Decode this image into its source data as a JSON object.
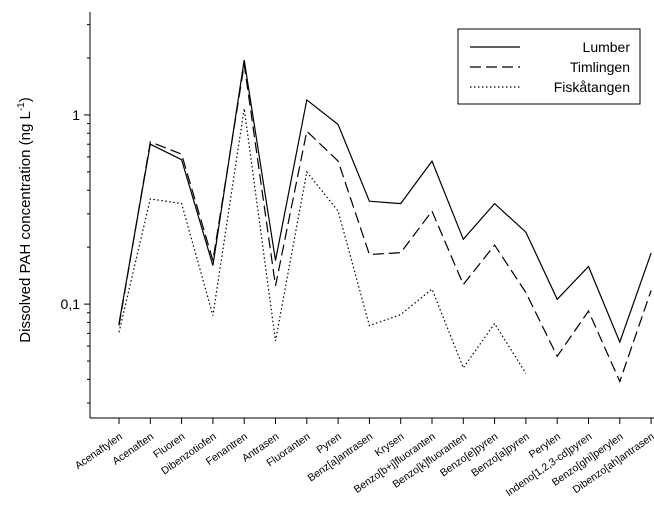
{
  "chart_data": {
    "type": "line",
    "ylabel": "Dissolved PAH concentration (ng L",
    "ylabel_sup": "-1",
    "ylabel_close": ")",
    "yscale": "log",
    "ylim": [
      0.025,
      3.5
    ],
    "yticks": [
      {
        "value": 0.1,
        "label": "0,1"
      },
      {
        "value": 1,
        "label": "1"
      }
    ],
    "grid": false,
    "legend_position": "top-right",
    "categories": [
      "Acenaftylen",
      "Acenaften",
      "Fluoren",
      "Dibenzotiofen",
      "Fenantren",
      "Antrasen",
      "Fluoranten",
      "Pyren",
      "Benz[a]antrasen",
      "Krysen",
      "Benzo[b+j]fluoranten",
      "Benzo[k]fluoranten",
      "Benzo[e]pyren",
      "Benzo[a]pyren",
      "Perylen",
      "Indeno[1,2,3-cd]pyren",
      "Benzo[ghi]perylen",
      "Dibenzo[ah]antrasen"
    ],
    "series": [
      {
        "name": "Lumber",
        "dash": "solid",
        "values": [
          0.079,
          0.7,
          0.58,
          0.16,
          1.95,
          0.17,
          1.2,
          0.89,
          0.35,
          0.34,
          0.57,
          0.22,
          0.34,
          0.24,
          0.106,
          0.158,
          0.063,
          0.186
        ]
      },
      {
        "name": "Timlingen",
        "dash": "dashed",
        "values": [
          0.077,
          0.72,
          0.62,
          0.17,
          1.85,
          0.125,
          0.82,
          0.57,
          0.183,
          0.187,
          0.31,
          0.127,
          0.205,
          0.115,
          0.053,
          0.092,
          0.039,
          0.118
        ]
      },
      {
        "name": "Fiskåtangen",
        "dash": "dotted",
        "values": [
          0.071,
          0.36,
          0.34,
          0.087,
          1.08,
          0.064,
          0.5,
          0.31,
          0.077,
          0.088,
          0.12,
          0.046,
          0.079,
          0.043,
          null,
          null,
          null,
          null
        ]
      }
    ]
  }
}
